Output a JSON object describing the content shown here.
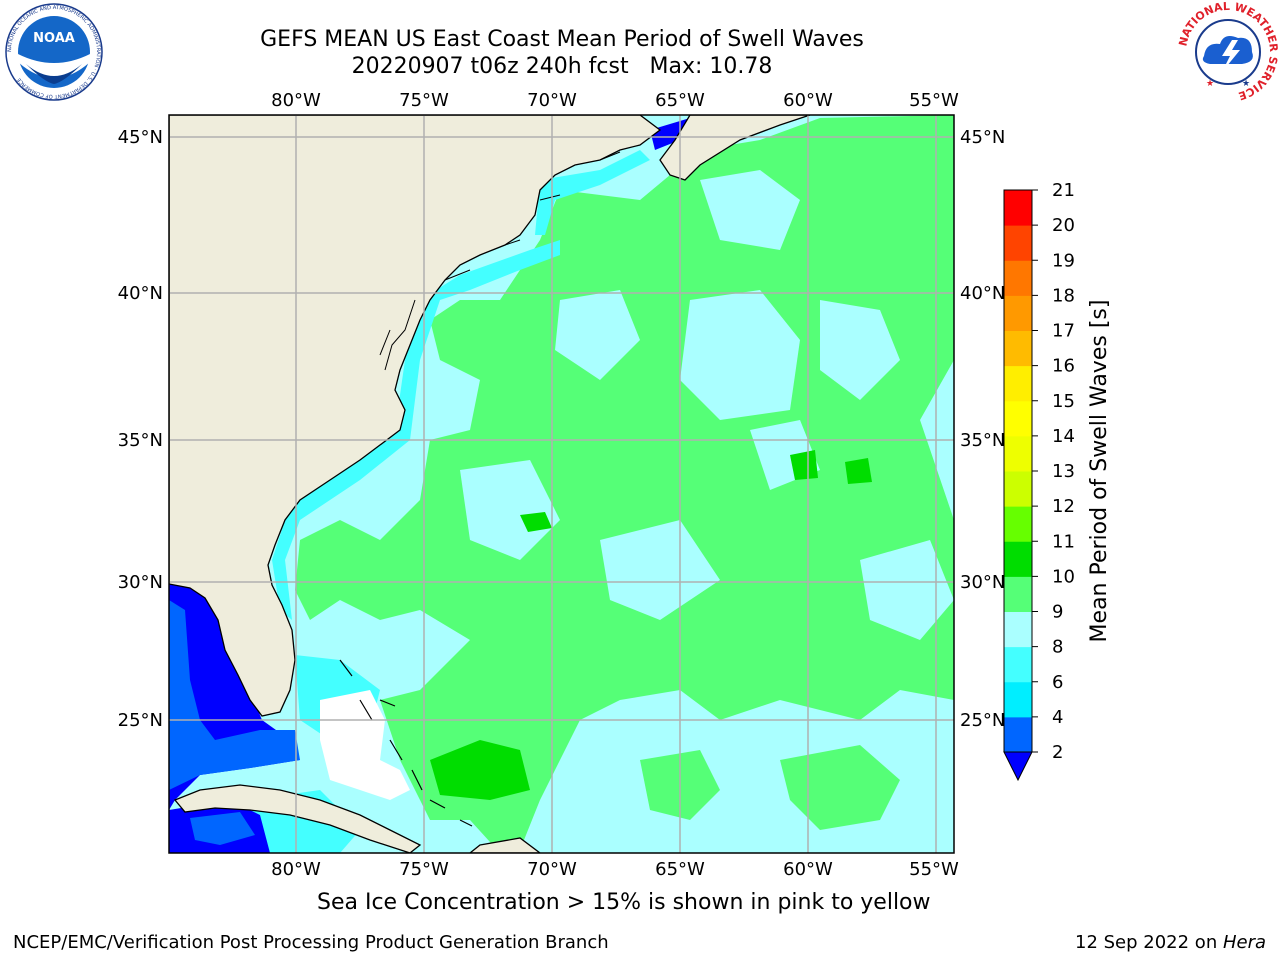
{
  "title_line1": "GEFS MEAN US East Coast Mean Period of Swell Waves",
  "title_line2": "20220907 t06z 240h fcst   Max: 10.78",
  "map": {
    "lon_labels": [
      "80°W",
      "75°W",
      "70°W",
      "65°W",
      "60°W",
      "55°W"
    ],
    "lat_labels": [
      "45°N",
      "40°N",
      "35°N",
      "30°N",
      "25°N"
    ],
    "land_color": "#efeddc",
    "grid_color": "#b0b0b0"
  },
  "colorbar": {
    "label": "Mean Period of Swell Waves [s]",
    "ticks": [
      "2",
      "4",
      "6",
      "8",
      "9",
      "10",
      "11",
      "12",
      "13",
      "14",
      "15",
      "16",
      "17",
      "18",
      "19",
      "20",
      "21"
    ],
    "colors": [
      "#0066ff",
      "#00eeff",
      "#44ffff",
      "#aaffff",
      "#55ff77",
      "#00dd00",
      "#66ff00",
      "#ccff00",
      "#eeff00",
      "#ffff00",
      "#ffee00",
      "#ffbb00",
      "#ff9900",
      "#ff7700",
      "#ff4400",
      "#ff0000"
    ],
    "extend_color": "#0000ff"
  },
  "caption": "Sea Ice Concentration > 15% is shown in pink to yellow",
  "footer_left": "NCEP/EMC/Verification Post Processing Product Generation Branch",
  "footer_date": "12 Sep 2022 on ",
  "footer_host": "Hera",
  "logos": {
    "noaa_text": "NOAA",
    "noaa_ring": "NATIONAL OCEANIC AND ATMOSPHERIC ADMINISTRATION · U.S. DEPARTMENT OF COMMERCE",
    "nws_ring": "NATIONAL WEATHER SERVICE"
  }
}
